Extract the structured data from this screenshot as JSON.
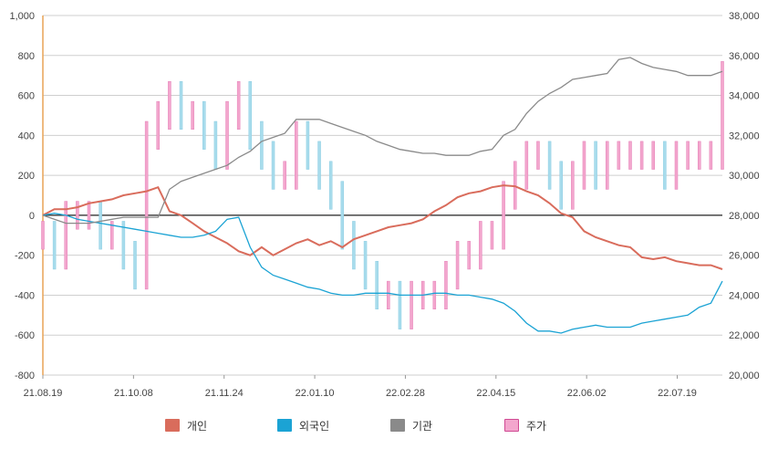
{
  "chart_data": {
    "type": "line",
    "x_tick_labels": [
      "21.08.19",
      "21.10.08",
      "21.11.24",
      "22.01.10",
      "22.02.28",
      "22.04.15",
      "22.06.02",
      "22.07.19"
    ],
    "y_left": {
      "min": -800,
      "max": 1000,
      "step": 200,
      "tick_labels": [
        "1,000",
        "800",
        "600",
        "400",
        "200",
        "0",
        "-200",
        "-400",
        "-600",
        "-800"
      ]
    },
    "y_right": {
      "min": 20000,
      "max": 38000,
      "step": 2000,
      "tick_labels": [
        "38,000",
        "36,000",
        "34,000",
        "32,000",
        "30,000",
        "28,000",
        "26,000",
        "24,000",
        "22,000",
        "20,000"
      ]
    },
    "grid": true,
    "legend_position": "bottom",
    "series": [
      {
        "name": "개인",
        "axis": "left",
        "color": "#d96c5c",
        "values": [
          0,
          30,
          30,
          40,
          60,
          70,
          80,
          100,
          110,
          120,
          140,
          20,
          0,
          -40,
          -80,
          -110,
          -140,
          -180,
          -200,
          -160,
          -200,
          -170,
          -140,
          -120,
          -150,
          -130,
          -160,
          -120,
          -100,
          -80,
          -60,
          -50,
          -40,
          -20,
          20,
          50,
          90,
          110,
          120,
          140,
          150,
          145,
          120,
          100,
          60,
          10,
          -10,
          -80,
          -110,
          -130,
          -150,
          -160,
          -210,
          -220,
          -210,
          -230,
          -240,
          -250,
          -250,
          -270
        ]
      },
      {
        "name": "외국인",
        "axis": "left",
        "color": "#1ba3d4",
        "values": [
          0,
          10,
          0,
          -20,
          -30,
          -40,
          -50,
          -60,
          -70,
          -80,
          -90,
          -100,
          -110,
          -110,
          -100,
          -80,
          -20,
          -10,
          -160,
          -260,
          -300,
          -320,
          -340,
          -360,
          -370,
          -390,
          -400,
          -400,
          -390,
          -390,
          -390,
          -400,
          -400,
          -400,
          -390,
          -390,
          -400,
          -400,
          -410,
          -420,
          -440,
          -480,
          -540,
          -580,
          -580,
          -590,
          -570,
          -560,
          -550,
          -560,
          -560,
          -560,
          -540,
          -530,
          -520,
          -510,
          -500,
          -460,
          -440,
          -330
        ]
      },
      {
        "name": "기관",
        "axis": "left",
        "color": "#8a8a8a",
        "values": [
          0,
          -20,
          -40,
          -40,
          -40,
          -30,
          -20,
          -10,
          -10,
          -10,
          -10,
          130,
          170,
          190,
          210,
          230,
          250,
          290,
          320,
          370,
          390,
          410,
          480,
          480,
          480,
          460,
          440,
          420,
          400,
          370,
          350,
          330,
          320,
          310,
          310,
          300,
          300,
          300,
          320,
          330,
          400,
          430,
          510,
          570,
          610,
          640,
          680,
          690,
          700,
          710,
          780,
          790,
          760,
          740,
          730,
          720,
          700,
          700,
          700,
          720
        ]
      },
      {
        "name": "주가",
        "axis": "right",
        "color": "#f3a6cd",
        "values": [
          27000,
          26000,
          28000,
          28000,
          28000,
          27000,
          27000,
          26000,
          25000,
          32000,
          33000,
          34000,
          33000,
          33000,
          32000,
          31000,
          33000,
          34000,
          32000,
          31000,
          30000,
          30000,
          32000,
          31000,
          30000,
          29000,
          27000,
          26000,
          25000,
          24000,
          24000,
          23000,
          24000,
          24000,
          24000,
          25000,
          26000,
          26000,
          27000,
          27000,
          29000,
          30000,
          31000,
          31000,
          30000,
          29000,
          30000,
          31000,
          30000,
          31000,
          31000,
          31000,
          31000,
          31000,
          30000,
          31000,
          31000,
          31000,
          31000,
          35000
        ]
      }
    ]
  },
  "legend": [
    {
      "label": "개인",
      "color": "#d96c5c"
    },
    {
      "label": "외국인",
      "color": "#1ba3d4"
    },
    {
      "label": "기관",
      "color": "#8a8a8a"
    },
    {
      "label": "주가",
      "color": "#f3a6cd"
    }
  ]
}
